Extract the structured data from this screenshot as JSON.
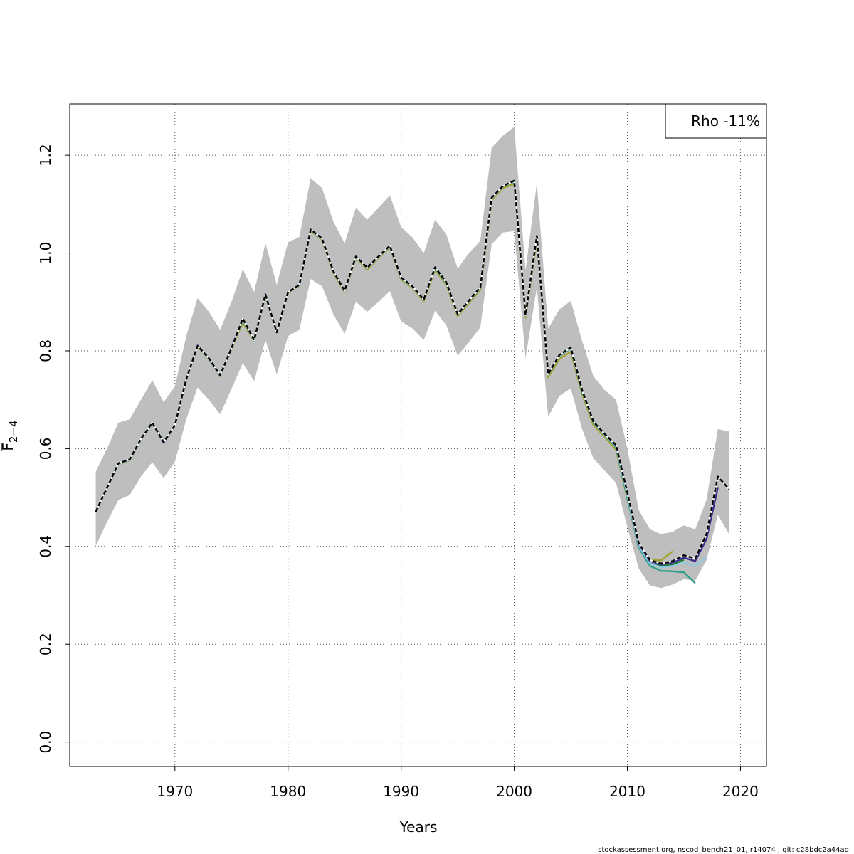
{
  "chart_data": {
    "type": "line",
    "xlabel": "Years",
    "ylabel_main": "F",
    "ylabel_sub": "2−4",
    "xlim": [
      1960.7,
      2022.3
    ],
    "ylim": [
      -0.05,
      1.305
    ],
    "x_ticks": [
      1970,
      1980,
      1990,
      2000,
      2010,
      2020
    ],
    "x_tick_labels": [
      "1970",
      "1980",
      "1990",
      "2000",
      "2010",
      "2020"
    ],
    "y_ticks": [
      0.0,
      0.2,
      0.4,
      0.6,
      0.8,
      1.0,
      1.2
    ],
    "y_tick_labels": [
      "0.0",
      "0.2",
      "0.4",
      "0.6",
      "0.8",
      "1.0",
      "1.2"
    ],
    "grid": true,
    "legend": {
      "position": "top-right",
      "text": "Rho -11%"
    },
    "confidence_band": {
      "color": "#bebebe",
      "x": [
        1963,
        1964,
        1965,
        1966,
        1967,
        1968,
        1969,
        1970,
        1971,
        1972,
        1973,
        1974,
        1975,
        1976,
        1977,
        1978,
        1979,
        1980,
        1981,
        1982,
        1983,
        1984,
        1985,
        1986,
        1987,
        1988,
        1989,
        1990,
        1991,
        1992,
        1993,
        1994,
        1995,
        1996,
        1997,
        1998,
        1999,
        2000,
        2001,
        2002,
        2003,
        2004,
        2005,
        2006,
        2007,
        2008,
        2009,
        2010,
        2011,
        2012,
        2013,
        2014,
        2015,
        2016,
        2017,
        2018,
        2019
      ],
      "lower": [
        0.401,
        0.45,
        0.495,
        0.505,
        0.543,
        0.572,
        0.54,
        0.573,
        0.66,
        0.725,
        0.7,
        0.67,
        0.722,
        0.775,
        0.738,
        0.822,
        0.752,
        0.83,
        0.843,
        0.947,
        0.932,
        0.875,
        0.835,
        0.9,
        0.88,
        0.9,
        0.922,
        0.86,
        0.846,
        0.822,
        0.882,
        0.852,
        0.79,
        0.818,
        0.848,
        1.018,
        1.042,
        1.045,
        0.785,
        0.93,
        0.665,
        0.708,
        0.723,
        0.64,
        0.58,
        0.555,
        0.53,
        0.44,
        0.355,
        0.32,
        0.315,
        0.322,
        0.333,
        0.33,
        0.372,
        0.465,
        0.425
      ],
      "upper": [
        0.553,
        0.6,
        0.653,
        0.66,
        0.7,
        0.74,
        0.695,
        0.728,
        0.83,
        0.908,
        0.88,
        0.843,
        0.9,
        0.967,
        0.92,
        1.02,
        0.935,
        1.022,
        1.033,
        1.153,
        1.133,
        1.065,
        1.02,
        1.093,
        1.068,
        1.093,
        1.118,
        1.053,
        1.032,
        1.0,
        1.068,
        1.038,
        0.968,
        1.0,
        1.025,
        1.215,
        1.24,
        1.258,
        0.965,
        1.143,
        0.846,
        0.885,
        0.902,
        0.82,
        0.748,
        0.72,
        0.7,
        0.6,
        0.475,
        0.435,
        0.425,
        0.43,
        0.443,
        0.435,
        0.495,
        0.64,
        0.635
      ]
    },
    "series": [
      {
        "color": "#000000",
        "dashed": true,
        "x": [
          1963,
          1964,
          1965,
          1966,
          1967,
          1968,
          1969,
          1970,
          1971,
          1972,
          1973,
          1974,
          1975,
          1976,
          1977,
          1978,
          1979,
          1980,
          1981,
          1982,
          1983,
          1984,
          1985,
          1986,
          1987,
          1988,
          1989,
          1990,
          1991,
          1992,
          1993,
          1994,
          1995,
          1996,
          1997,
          1998,
          1999,
          2000,
          2001,
          2002,
          2003,
          2004,
          2005,
          2006,
          2007,
          2008,
          2009,
          2010,
          2011,
          2012,
          2013,
          2014,
          2015,
          2016,
          2017,
          2018,
          2019
        ],
        "values": [
          0.471,
          0.52,
          0.57,
          0.578,
          0.62,
          0.653,
          0.613,
          0.648,
          0.742,
          0.81,
          0.785,
          0.75,
          0.805,
          0.866,
          0.822,
          0.915,
          0.838,
          0.92,
          0.935,
          1.048,
          1.03,
          0.963,
          0.923,
          0.993,
          0.97,
          0.993,
          1.015,
          0.95,
          0.932,
          0.905,
          0.971,
          0.94,
          0.875,
          0.903,
          0.93,
          1.113,
          1.137,
          1.148,
          0.873,
          1.035,
          0.752,
          0.792,
          0.807,
          0.72,
          0.655,
          0.63,
          0.607,
          0.51,
          0.407,
          0.372,
          0.365,
          0.37,
          0.382,
          0.375,
          0.425,
          0.543,
          0.517
        ]
      },
      {
        "color": "#3c2f8f",
        "dashed": false,
        "x": [
          1963,
          1964,
          1965,
          1966,
          1967,
          1968,
          1969,
          1970,
          1971,
          1972,
          1973,
          1974,
          1975,
          1976,
          1977,
          1978,
          1979,
          1980,
          1981,
          1982,
          1983,
          1984,
          1985,
          1986,
          1987,
          1988,
          1989,
          1990,
          1991,
          1992,
          1993,
          1994,
          1995,
          1996,
          1997,
          1998,
          1999,
          2000,
          2001,
          2002,
          2003,
          2004,
          2005,
          2006,
          2007,
          2008,
          2009,
          2010,
          2011,
          2012,
          2013,
          2014,
          2015,
          2016,
          2017,
          2018
        ],
        "values": [
          0.471,
          0.52,
          0.57,
          0.578,
          0.62,
          0.653,
          0.612,
          0.648,
          0.742,
          0.811,
          0.785,
          0.75,
          0.806,
          0.866,
          0.822,
          0.916,
          0.838,
          0.92,
          0.935,
          1.048,
          1.03,
          0.963,
          0.923,
          0.993,
          0.97,
          0.993,
          1.015,
          0.95,
          0.932,
          0.905,
          0.971,
          0.94,
          0.875,
          0.903,
          0.93,
          1.113,
          1.137,
          1.148,
          0.873,
          1.035,
          0.752,
          0.792,
          0.807,
          0.72,
          0.655,
          0.63,
          0.607,
          0.51,
          0.406,
          0.37,
          0.363,
          0.367,
          0.377,
          0.37,
          0.415,
          0.52
        ]
      },
      {
        "color": "#8ecae0",
        "dashed": false,
        "x": [
          1963,
          1964,
          1965,
          1966,
          1967,
          1968,
          1969,
          1970,
          1971,
          1972,
          1973,
          1974,
          1975,
          1976,
          1977,
          1978,
          1979,
          1980,
          1981,
          1982,
          1983,
          1984,
          1985,
          1986,
          1987,
          1988,
          1989,
          1990,
          1991,
          1992,
          1993,
          1994,
          1995,
          1996,
          1997,
          1998,
          1999,
          2000,
          2001,
          2002,
          2003,
          2004,
          2005,
          2006,
          2007,
          2008,
          2009,
          2010,
          2011,
          2012,
          2013,
          2014,
          2015,
          2016,
          2017
        ],
        "values": [
          0.471,
          0.52,
          0.569,
          0.577,
          0.619,
          0.652,
          0.614,
          0.648,
          0.741,
          0.81,
          0.784,
          0.749,
          0.805,
          0.864,
          0.821,
          0.914,
          0.838,
          0.92,
          0.934,
          1.047,
          1.029,
          0.963,
          0.922,
          0.992,
          0.969,
          0.992,
          1.014,
          0.949,
          0.931,
          0.904,
          0.97,
          0.939,
          0.874,
          0.902,
          0.929,
          1.112,
          1.136,
          1.147,
          0.872,
          1.034,
          0.751,
          0.791,
          0.806,
          0.719,
          0.654,
          0.628,
          0.605,
          0.505,
          0.402,
          0.365,
          0.357,
          0.36,
          0.368,
          0.36,
          0.378
        ]
      },
      {
        "color": "#2fa08a",
        "dashed": false,
        "x": [
          1963,
          1964,
          1965,
          1966,
          1967,
          1968,
          1969,
          1970,
          1971,
          1972,
          1973,
          1974,
          1975,
          1976,
          1977,
          1978,
          1979,
          1980,
          1981,
          1982,
          1983,
          1984,
          1985,
          1986,
          1987,
          1988,
          1989,
          1990,
          1991,
          1992,
          1993,
          1994,
          1995,
          1996,
          1997,
          1998,
          1999,
          2000,
          2001,
          2002,
          2003,
          2004,
          2005,
          2006,
          2007,
          2008,
          2009,
          2010,
          2011,
          2012,
          2013,
          2014,
          2015,
          2016
        ],
        "values": [
          0.471,
          0.52,
          0.569,
          0.577,
          0.619,
          0.652,
          0.614,
          0.648,
          0.741,
          0.81,
          0.784,
          0.749,
          0.805,
          0.864,
          0.821,
          0.914,
          0.838,
          0.92,
          0.934,
          1.047,
          1.029,
          0.963,
          0.922,
          0.992,
          0.969,
          0.992,
          1.014,
          0.949,
          0.931,
          0.904,
          0.97,
          0.939,
          0.874,
          0.902,
          0.929,
          1.112,
          1.136,
          1.147,
          0.872,
          1.034,
          0.751,
          0.791,
          0.806,
          0.718,
          0.653,
          0.627,
          0.603,
          0.5,
          0.398,
          0.36,
          0.35,
          0.349,
          0.347,
          0.325
        ]
      },
      {
        "color": "#1f7a3a",
        "dashed": false,
        "x": [
          1963,
          1964,
          1965,
          1966,
          1967,
          1968,
          1969,
          1970,
          1971,
          1972,
          1973,
          1974,
          1975,
          1976,
          1977,
          1978,
          1979,
          1980,
          1981,
          1982,
          1983,
          1984,
          1985,
          1986,
          1987,
          1988,
          1989,
          1990,
          1991,
          1992,
          1993,
          1994,
          1995,
          1996,
          1997,
          1998,
          1999,
          2000,
          2001,
          2002,
          2003,
          2004,
          2005,
          2006,
          2007,
          2008,
          2009,
          2010,
          2011,
          2012,
          2013,
          2014,
          2015
        ],
        "values": [
          0.471,
          0.52,
          0.569,
          0.577,
          0.619,
          0.652,
          0.614,
          0.648,
          0.741,
          0.81,
          0.784,
          0.749,
          0.805,
          0.863,
          0.821,
          0.914,
          0.838,
          0.92,
          0.934,
          1.047,
          1.029,
          0.962,
          0.922,
          0.992,
          0.969,
          0.992,
          1.014,
          0.948,
          0.931,
          0.904,
          0.969,
          0.938,
          0.874,
          0.901,
          0.928,
          1.112,
          1.136,
          1.146,
          0.872,
          1.033,
          0.752,
          0.79,
          0.805,
          0.716,
          0.656,
          0.63,
          0.603,
          0.5,
          0.398,
          0.365,
          0.36,
          0.363,
          0.373
        ]
      },
      {
        "color": "#a3a32b",
        "dashed": false,
        "x": [
          1963,
          1964,
          1965,
          1966,
          1967,
          1968,
          1969,
          1970,
          1971,
          1972,
          1973,
          1974,
          1975,
          1976,
          1977,
          1978,
          1979,
          1980,
          1981,
          1982,
          1983,
          1984,
          1985,
          1986,
          1987,
          1988,
          1989,
          1990,
          1991,
          1992,
          1993,
          1994,
          1995,
          1996,
          1997,
          1998,
          1999,
          2000,
          2001,
          2002,
          2003,
          2004,
          2005,
          2006,
          2007,
          2008,
          2009,
          2010,
          2011,
          2012,
          2013,
          2014
        ],
        "values": [
          0.47,
          0.519,
          0.568,
          0.576,
          0.618,
          0.651,
          0.615,
          0.647,
          0.74,
          0.809,
          0.783,
          0.748,
          0.804,
          0.858,
          0.82,
          0.912,
          0.837,
          0.919,
          0.933,
          1.045,
          1.027,
          0.96,
          0.92,
          0.99,
          0.966,
          0.99,
          1.012,
          0.946,
          0.929,
          0.901,
          0.966,
          0.935,
          0.871,
          0.898,
          0.925,
          1.108,
          1.133,
          1.141,
          0.868,
          1.028,
          0.746,
          0.784,
          0.798,
          0.712,
          0.648,
          0.624,
          0.598,
          0.497,
          0.405,
          0.372,
          0.372,
          0.39
        ]
      }
    ]
  },
  "footer": "stockassessment.org, nscod_bench21_01, r14074 , git: c28bdc2a44ad"
}
